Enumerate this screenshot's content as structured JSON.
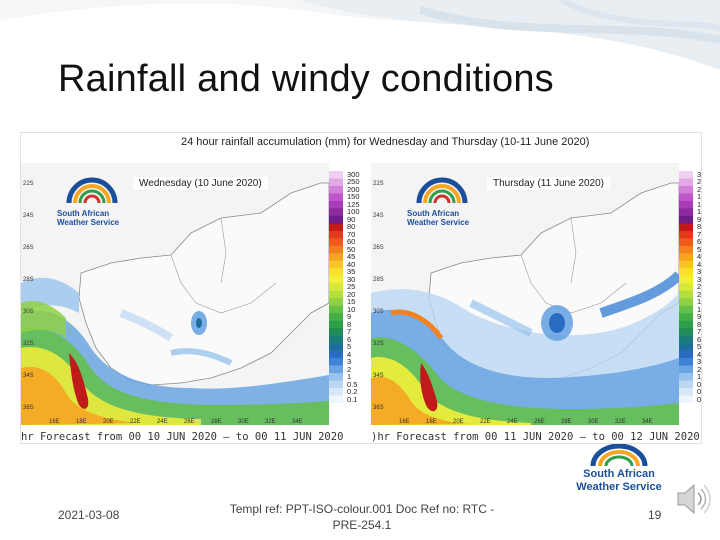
{
  "slide": {
    "title": "Rainfall and windy conditions",
    "footer_date": "2021-03-08",
    "footer_ref": "Templ ref: PPT-ISO-colour.001    Doc Ref no: RTC -PRE-254.1",
    "page_number": "19",
    "footer_logo": {
      "line1": "South African",
      "line2": "Weather Service"
    }
  },
  "figure": {
    "title": "24 hour rainfall accumulation (mm) for Wednesday and Thursday (10-11 June 2020)",
    "scale_values": [
      "300",
      "250",
      "200",
      "150",
      "125",
      "100",
      "90",
      "80",
      "70",
      "60",
      "50",
      "45",
      "40",
      "35",
      "30",
      "25",
      "20",
      "15",
      "10",
      "9",
      "8",
      "7",
      "6",
      "5",
      "4",
      "3",
      "2",
      "1",
      "0.5",
      "0.2",
      "0.1"
    ],
    "scale_colors": [
      "#f0d0f0",
      "#e3a8e6",
      "#d27fd8",
      "#bf56c8",
      "#a93bb6",
      "#8d2aa0",
      "#6e1e88",
      "#c01a1a",
      "#e23a1a",
      "#f05a1a",
      "#f4801e",
      "#f6a422",
      "#f8c428",
      "#fbe02e",
      "#f2ef3a",
      "#d7e83c",
      "#b3df3e",
      "#8ed145",
      "#63c147",
      "#43b046",
      "#2f9e48",
      "#1f8c58",
      "#1b7d78",
      "#1c6f98",
      "#2a6cc0",
      "#3f83d6",
      "#6aa4e2",
      "#98c3ec",
      "#bcd7f2",
      "#d9e8f8",
      "#eef5fc"
    ],
    "lat_labels": [
      "22S",
      "24S",
      "26S",
      "28S",
      "30S",
      "32S",
      "34S",
      "36S"
    ],
    "lon_labels": [
      "16E",
      "18E",
      "20E",
      "22E",
      "24E",
      "26E",
      "28E",
      "30E",
      "32E",
      "34E"
    ],
    "panels": [
      {
        "day_label": "Wednesday (10 June 2020)",
        "forecast_line": "hr Forecast from  00 10 JUN 2020  – to 00 11 JUN 2020",
        "logo_line1": "South African",
        "logo_line2": "Weather Service"
      },
      {
        "day_label": "Thursday (11 June 2020)",
        "forecast_line": ")hr Forecast from  00 11 JUN 2020  – to 00 12 JUN 2020",
        "logo_line1": "South African",
        "logo_line2": "Weather Service"
      }
    ]
  }
}
